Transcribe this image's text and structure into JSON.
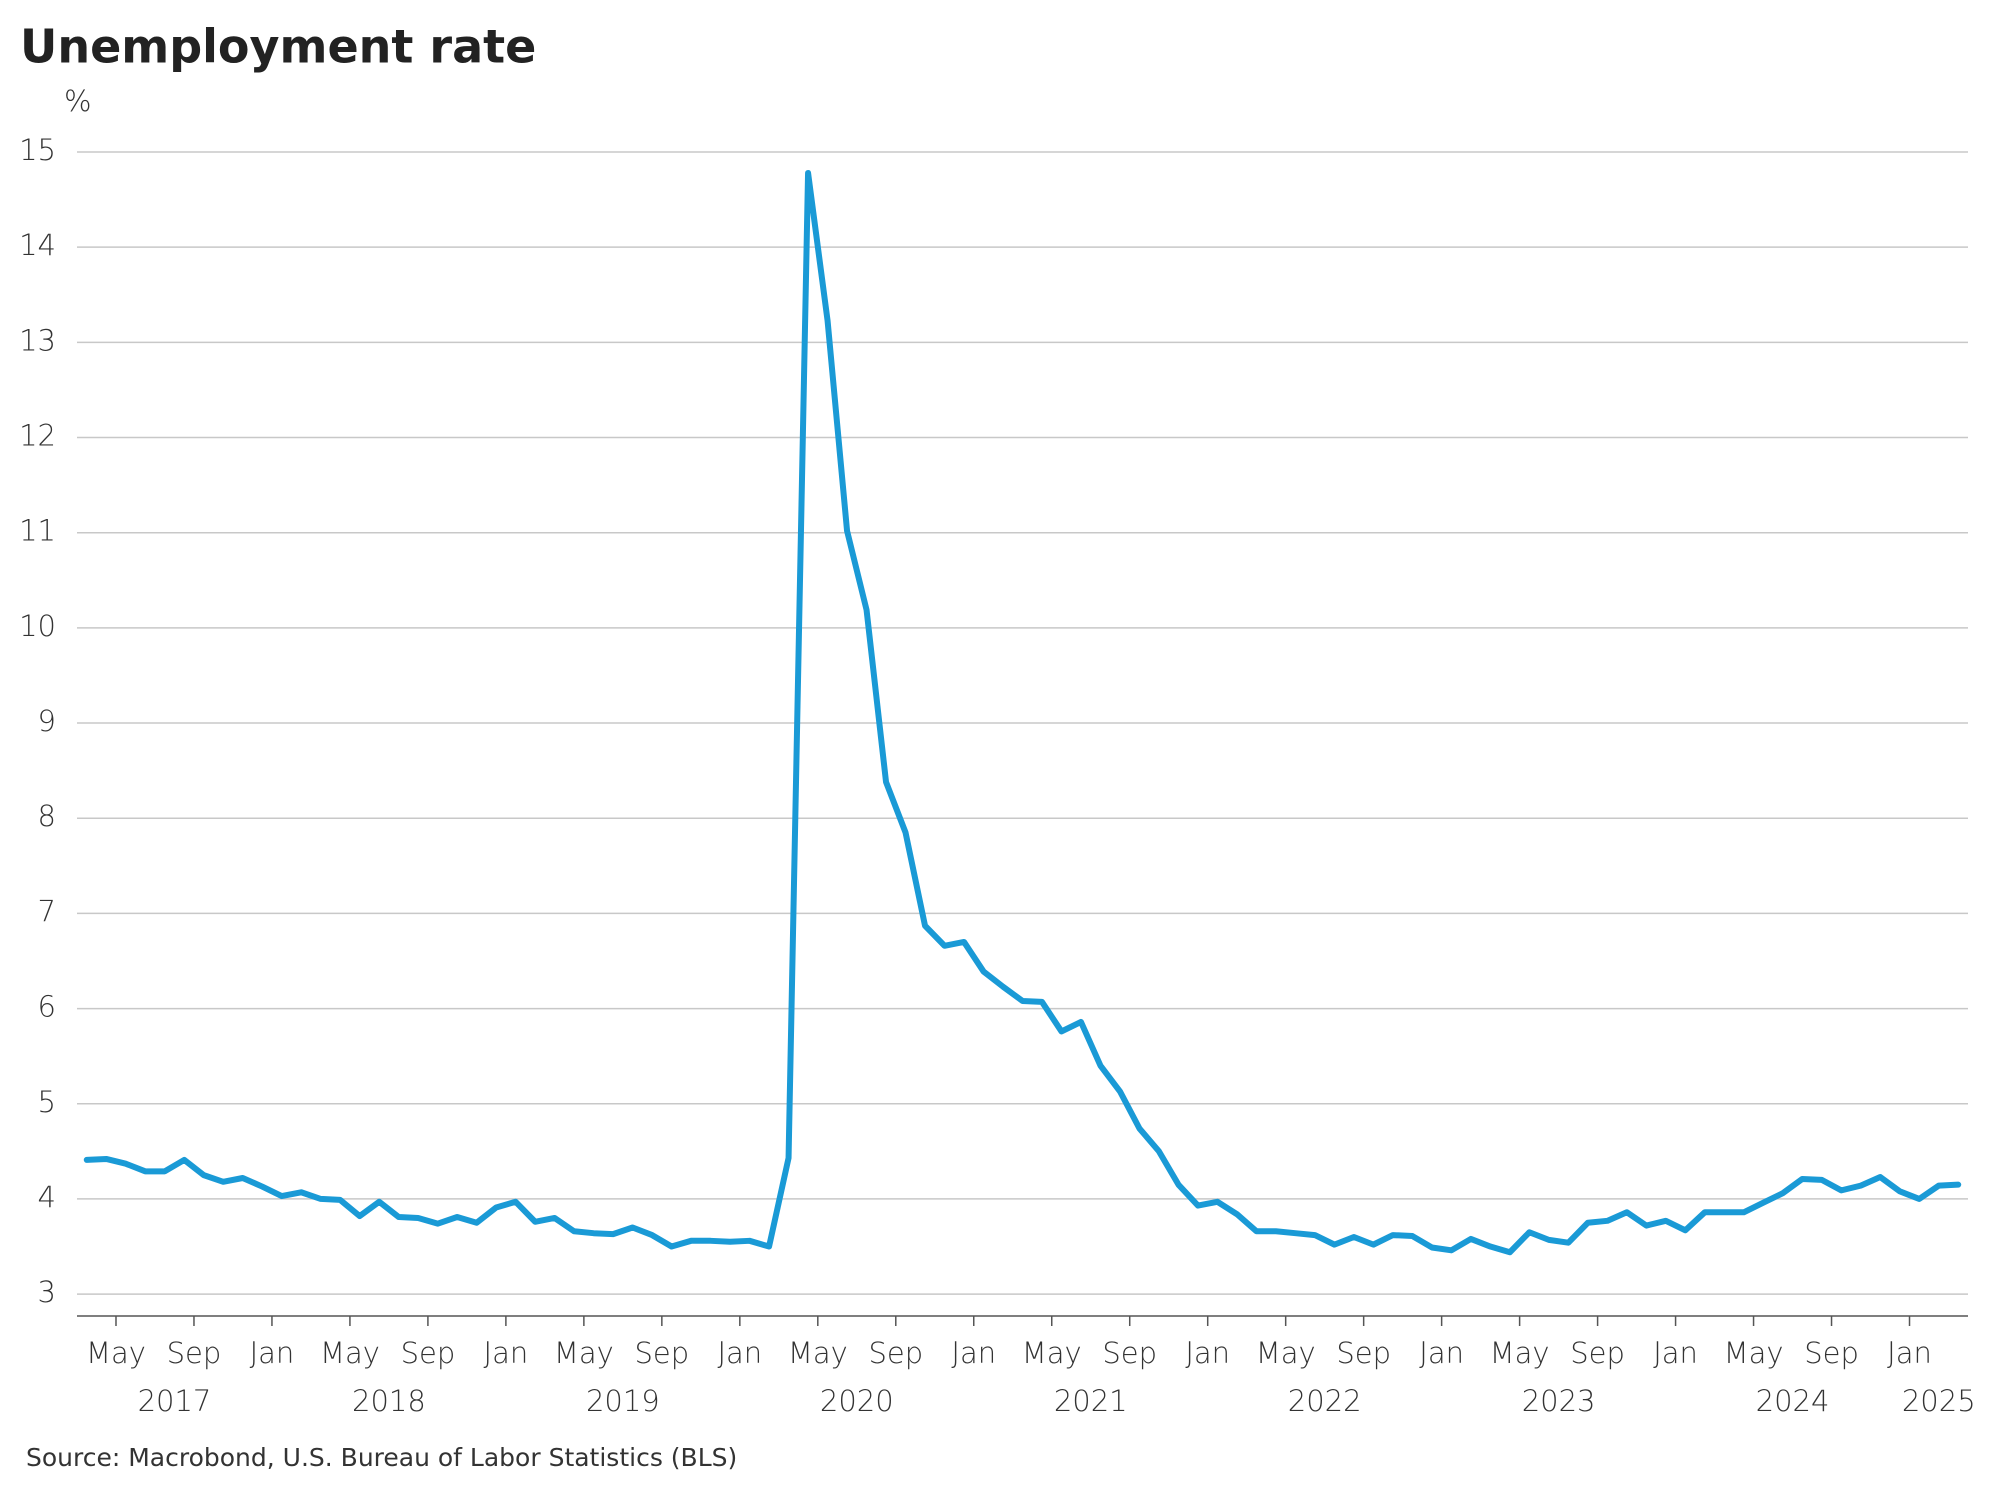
{
  "chart_data": {
    "type": "line",
    "title": "Unemployment rate",
    "y_unit": "%",
    "source": "Source: Macrobond, U.S. Bureau of Labor Statistics (BLS)",
    "color": "#1a9ad6",
    "grid": true,
    "x": [
      "2017-03",
      "2017-04",
      "2017-05",
      "2017-06",
      "2017-07",
      "2017-08",
      "2017-09",
      "2017-10",
      "2017-11",
      "2017-12",
      "2018-01",
      "2018-02",
      "2018-03",
      "2018-04",
      "2018-05",
      "2018-06",
      "2018-07",
      "2018-08",
      "2018-09",
      "2018-10",
      "2018-11",
      "2018-12",
      "2019-01",
      "2019-02",
      "2019-03",
      "2019-04",
      "2019-05",
      "2019-06",
      "2019-07",
      "2019-08",
      "2019-09",
      "2019-10",
      "2019-11",
      "2019-12",
      "2020-01",
      "2020-02",
      "2020-03",
      "2020-04",
      "2020-05",
      "2020-06",
      "2020-07",
      "2020-08",
      "2020-09",
      "2020-10",
      "2020-11",
      "2020-12",
      "2021-01",
      "2021-02",
      "2021-03",
      "2021-04",
      "2021-05",
      "2021-06",
      "2021-07",
      "2021-08",
      "2021-09",
      "2021-10",
      "2021-11",
      "2021-12",
      "2022-01",
      "2022-02",
      "2022-03",
      "2022-04",
      "2022-05",
      "2022-06",
      "2022-07",
      "2022-08",
      "2022-09",
      "2022-10",
      "2022-11",
      "2022-12",
      "2023-01",
      "2023-02",
      "2023-03",
      "2023-04",
      "2023-05",
      "2023-06",
      "2023-07",
      "2023-08",
      "2023-09",
      "2023-10",
      "2023-11",
      "2023-12",
      "2024-01",
      "2024-02",
      "2024-03",
      "2024-04",
      "2024-05",
      "2024-06",
      "2024-07",
      "2024-08",
      "2024-09",
      "2024-10",
      "2024-11",
      "2024-12",
      "2025-01",
      "2025-02",
      "2025-03"
    ],
    "values": [
      4.41,
      4.42,
      4.37,
      4.29,
      4.29,
      4.41,
      4.25,
      4.18,
      4.22,
      4.13,
      4.03,
      4.07,
      4.0,
      3.99,
      3.82,
      3.97,
      3.81,
      3.8,
      3.74,
      3.81,
      3.75,
      3.91,
      3.97,
      3.76,
      3.8,
      3.66,
      3.64,
      3.63,
      3.7,
      3.62,
      3.5,
      3.56,
      3.56,
      3.55,
      3.56,
      3.5,
      4.43,
      14.78,
      13.23,
      11.02,
      10.19,
      8.38,
      7.85,
      6.87,
      6.66,
      6.7,
      6.39,
      6.23,
      6.08,
      6.07,
      5.76,
      5.86,
      5.4,
      5.13,
      4.74,
      4.5,
      4.15,
      3.93,
      3.97,
      3.84,
      3.66,
      3.66,
      3.64,
      3.62,
      3.52,
      3.6,
      3.52,
      3.62,
      3.61,
      3.49,
      3.46,
      3.58,
      3.5,
      3.44,
      3.65,
      3.57,
      3.54,
      3.75,
      3.77,
      3.86,
      3.72,
      3.77,
      3.67,
      3.86,
      3.86,
      3.86,
      3.96,
      4.06,
      4.21,
      4.2,
      4.09,
      4.14,
      4.23,
      4.08,
      4.0,
      4.14,
      4.15
    ],
    "xlim": [
      "2017-03",
      "2025-04"
    ],
    "xticks": [
      {
        "value": "2017-05",
        "label": "May"
      },
      {
        "value": "2017-09",
        "label": "Sep"
      },
      {
        "value": "2018-01",
        "label": "Jan"
      },
      {
        "value": "2018-05",
        "label": "May"
      },
      {
        "value": "2018-09",
        "label": "Sep"
      },
      {
        "value": "2019-01",
        "label": "Jan"
      },
      {
        "value": "2019-05",
        "label": "May"
      },
      {
        "value": "2019-09",
        "label": "Sep"
      },
      {
        "value": "2020-01",
        "label": "Jan"
      },
      {
        "value": "2020-05",
        "label": "May"
      },
      {
        "value": "2020-09",
        "label": "Sep"
      },
      {
        "value": "2021-01",
        "label": "Jan"
      },
      {
        "value": "2021-05",
        "label": "May"
      },
      {
        "value": "2021-09",
        "label": "Sep"
      },
      {
        "value": "2022-01",
        "label": "Jan"
      },
      {
        "value": "2022-05",
        "label": "May"
      },
      {
        "value": "2022-09",
        "label": "Sep"
      },
      {
        "value": "2023-01",
        "label": "Jan"
      },
      {
        "value": "2023-05",
        "label": "May"
      },
      {
        "value": "2023-09",
        "label": "Sep"
      },
      {
        "value": "2024-01",
        "label": "Jan"
      },
      {
        "value": "2024-05",
        "label": "May"
      },
      {
        "value": "2024-09",
        "label": "Sep"
      },
      {
        "value": "2025-01",
        "label": "Jan"
      }
    ],
    "years": [
      2017,
      2018,
      2019,
      2020,
      2021,
      2022,
      2023,
      2024,
      2025
    ],
    "ylim": [
      2.77,
      15
    ],
    "yticks": [
      3,
      4,
      5,
      6,
      7,
      8,
      9,
      10,
      11,
      12,
      13,
      14,
      15
    ]
  }
}
